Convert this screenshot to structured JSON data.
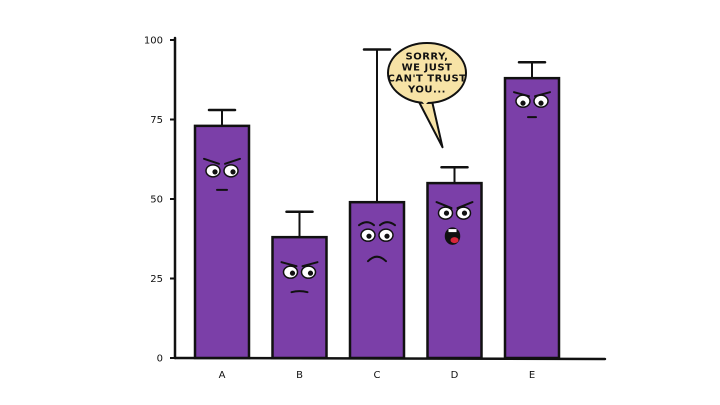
{
  "chart_data": {
    "type": "bar",
    "categories": [
      "A",
      "B",
      "C",
      "D",
      "E"
    ],
    "values": [
      73,
      38,
      49,
      55,
      88
    ],
    "error_upper": [
      78,
      46,
      97,
      60,
      93
    ],
    "ylim": [
      0,
      100
    ],
    "yticks": [
      0,
      25,
      50,
      75,
      100
    ],
    "title": "",
    "xlabel": "",
    "ylabel": "",
    "grid": false,
    "colors": {
      "bar": "#7b3fa8",
      "outline": "#111111",
      "bubble": "#f7e3a6"
    },
    "expressions": [
      "annoyed",
      "suspicious",
      "worried",
      "talking",
      "stern"
    ],
    "annotation": {
      "category": "D",
      "text_lines": [
        "SORRY,",
        "WE JUST",
        "CAN'T TRUST",
        "YOU..."
      ]
    }
  }
}
